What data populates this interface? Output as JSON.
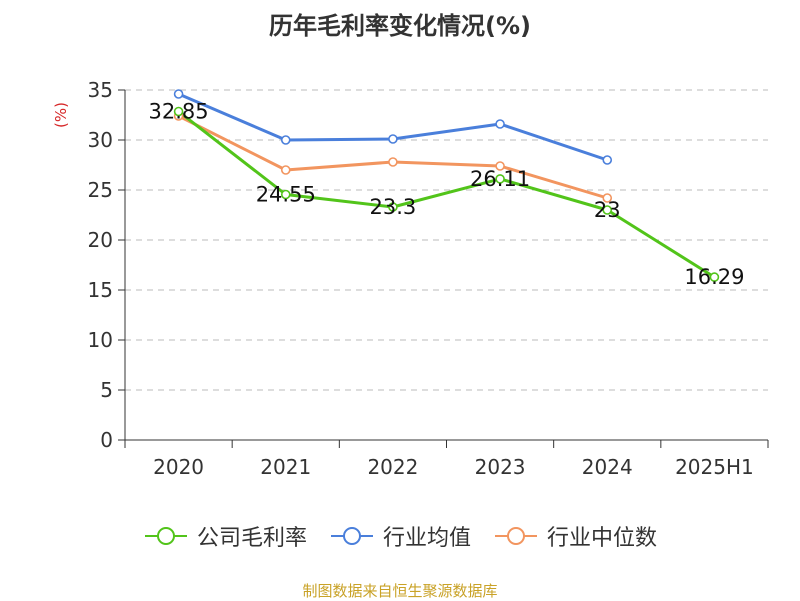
{
  "title": "历年毛利率变化情况(%)",
  "source_text": "制图数据来自恒生聚源数据库",
  "colors": {
    "series1": "#52c41a",
    "series2": "#4a7fdb",
    "series3": "#f2955f",
    "ylabel": "#d62728",
    "source": "#c9a227",
    "grid": "#bbbbbb",
    "axis": "#333333"
  },
  "chart_data": {
    "type": "line",
    "title": "历年毛利率变化情况(%)",
    "xlabel": "",
    "ylabel": "(%)",
    "ylim": [
      0,
      35
    ],
    "yticks": [
      0,
      5,
      10,
      15,
      20,
      25,
      30,
      35
    ],
    "categories": [
      "2020",
      "2021",
      "2022",
      "2023",
      "2024",
      "2025H1"
    ],
    "grid": "horizontal dashed",
    "legend_position": "bottom",
    "series": [
      {
        "name": "公司毛利率",
        "color": "#52c41a",
        "values": [
          32.85,
          24.55,
          23.3,
          26.11,
          23,
          16.29
        ],
        "labels": [
          "32.85",
          "24.55",
          "23.3",
          "26.11",
          "23",
          "16.29"
        ]
      },
      {
        "name": "行业均值",
        "color": "#4a7fdb",
        "values": [
          34.6,
          30.0,
          30.1,
          31.6,
          28.0,
          null
        ]
      },
      {
        "name": "行业中位数",
        "color": "#f2955f",
        "values": [
          32.4,
          27.0,
          27.8,
          27.4,
          24.2,
          null
        ]
      }
    ]
  }
}
